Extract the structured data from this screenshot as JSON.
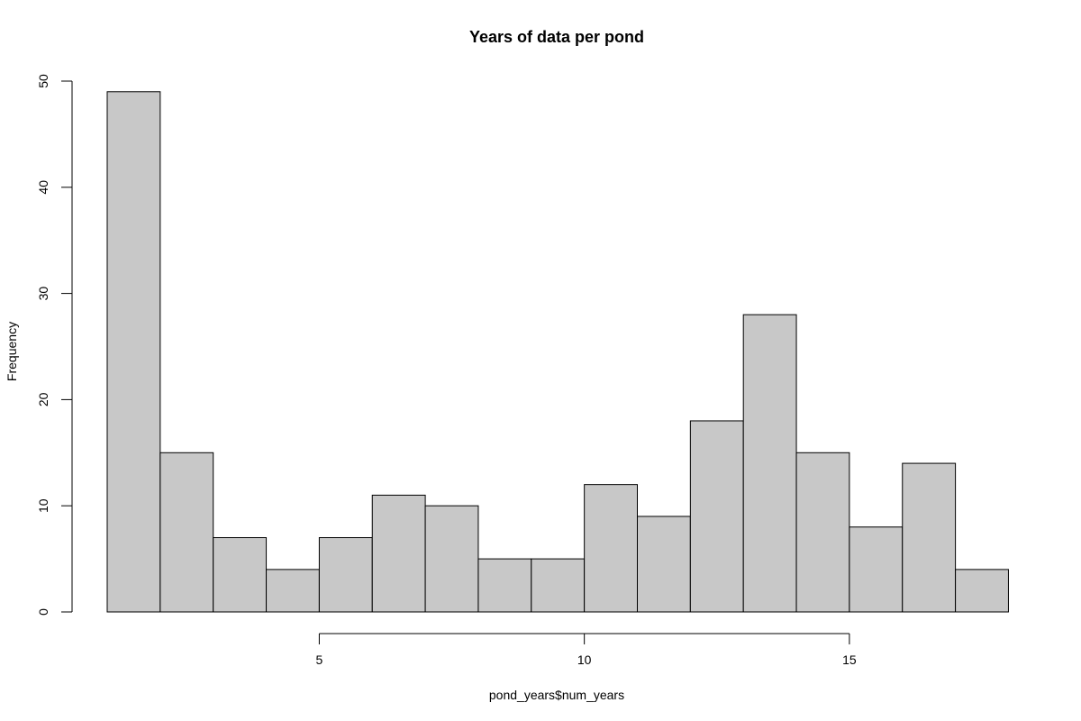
{
  "chart_data": {
    "type": "bar",
    "title": "Years of data per pond",
    "xlabel": "pond_years$num_years",
    "ylabel": "Frequency",
    "bins": [
      {
        "start": 1,
        "end": 2,
        "value": 49
      },
      {
        "start": 2,
        "end": 3,
        "value": 15
      },
      {
        "start": 3,
        "end": 4,
        "value": 7
      },
      {
        "start": 4,
        "end": 5,
        "value": 4
      },
      {
        "start": 5,
        "end": 6,
        "value": 7
      },
      {
        "start": 6,
        "end": 7,
        "value": 11
      },
      {
        "start": 7,
        "end": 8,
        "value": 10
      },
      {
        "start": 8,
        "end": 9,
        "value": 5
      },
      {
        "start": 9,
        "end": 10,
        "value": 5
      },
      {
        "start": 10,
        "end": 11,
        "value": 12
      },
      {
        "start": 11,
        "end": 12,
        "value": 9
      },
      {
        "start": 12,
        "end": 13,
        "value": 18
      },
      {
        "start": 13,
        "end": 14,
        "value": 28
      },
      {
        "start": 14,
        "end": 15,
        "value": 15
      },
      {
        "start": 15,
        "end": 16,
        "value": 8
      },
      {
        "start": 16,
        "end": 17,
        "value": 14
      },
      {
        "start": 17,
        "end": 18,
        "value": 4
      }
    ],
    "x_ticks": [
      "5",
      "10",
      "15"
    ],
    "y_ticks": [
      "0",
      "10",
      "20",
      "30",
      "40",
      "50"
    ],
    "xlim": [
      1,
      18
    ],
    "ylim": [
      0,
      50
    ],
    "grid": false,
    "bar_color": "#c8c8c8",
    "edge_color": "#000000"
  }
}
